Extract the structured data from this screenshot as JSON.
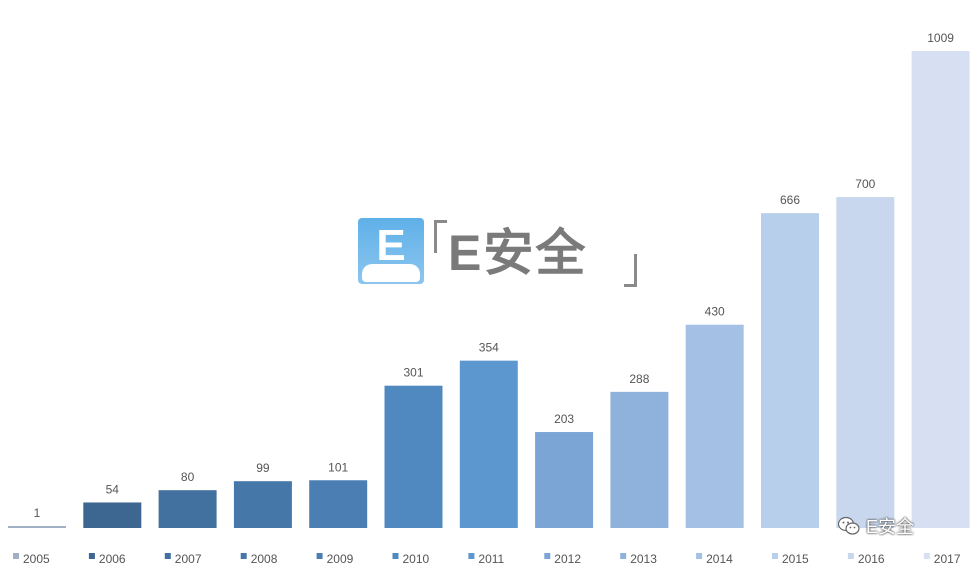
{
  "chart_data": {
    "type": "bar",
    "categories": [
      "2005",
      "2006",
      "2007",
      "2008",
      "2009",
      "2010",
      "2011",
      "2012",
      "2013",
      "2014",
      "2015",
      "2016",
      "2017"
    ],
    "values": [
      1,
      54,
      80,
      99,
      101,
      301,
      354,
      203,
      288,
      430,
      666,
      700,
      1009
    ],
    "ylim": [
      0,
      1009
    ],
    "grid": false,
    "legend_position": "bottom",
    "colors": [
      "#9fb1c3",
      "#3d6691",
      "#42709f",
      "#4677a9",
      "#4b7fb4",
      "#5088c0",
      "#5d97cf",
      "#7aa5d4",
      "#8fb2dd",
      "#a4c1e5",
      "#b8cfec",
      "#c8d7ee",
      "#d6e0f2"
    ]
  },
  "watermark": {
    "logo_letter": "E",
    "center_text": "E安全",
    "corner_text": "E安全",
    "corner_icon": "wechat-icon"
  }
}
